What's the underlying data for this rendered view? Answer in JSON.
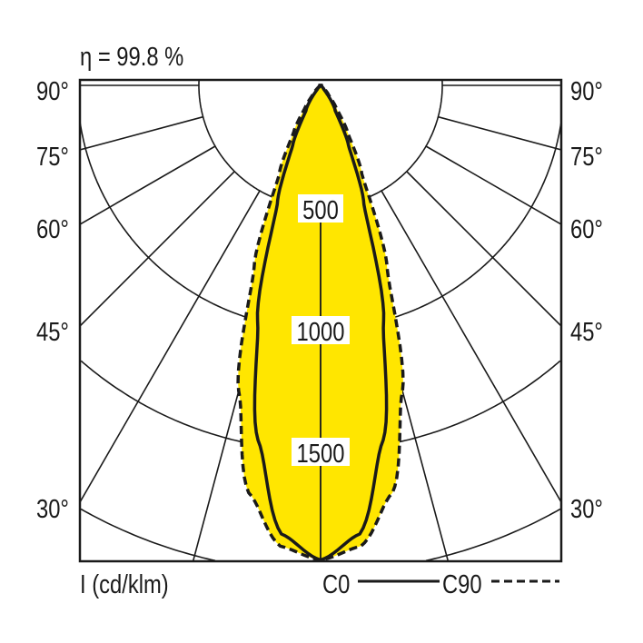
{
  "chart_data": {
    "type": "polar",
    "title": "η = 99.8 %",
    "unit_label": "I (cd/klm)",
    "radial_ticks": [
      500,
      1000,
      1500,
      2000
    ],
    "radial_tick_labels": [
      "500",
      "1000",
      "1500"
    ],
    "angle_labels": [
      "90°",
      "75°",
      "60°",
      "45°",
      "30°"
    ],
    "angle_label_values": [
      90,
      75,
      60,
      45,
      30
    ],
    "grid_angles": [
      0,
      15,
      30,
      45,
      60,
      75,
      90
    ],
    "fill_color": "#FFE600",
    "series": [
      {
        "name": "C0",
        "style": "solid",
        "angles": [
          0,
          5,
          10,
          15,
          20,
          25,
          30,
          40,
          50,
          90
        ],
        "values": [
          1950,
          1850,
          1480,
          1000,
          520,
          270,
          120,
          20,
          5,
          0
        ]
      },
      {
        "name": "C90",
        "style": "dashed",
        "angles": [
          0,
          5,
          10,
          15,
          20,
          25,
          30,
          35,
          40,
          50,
          60,
          90
        ],
        "values": [
          1950,
          1900,
          1700,
          1300,
          800,
          400,
          220,
          110,
          50,
          10,
          2,
          0
        ]
      }
    ]
  }
}
